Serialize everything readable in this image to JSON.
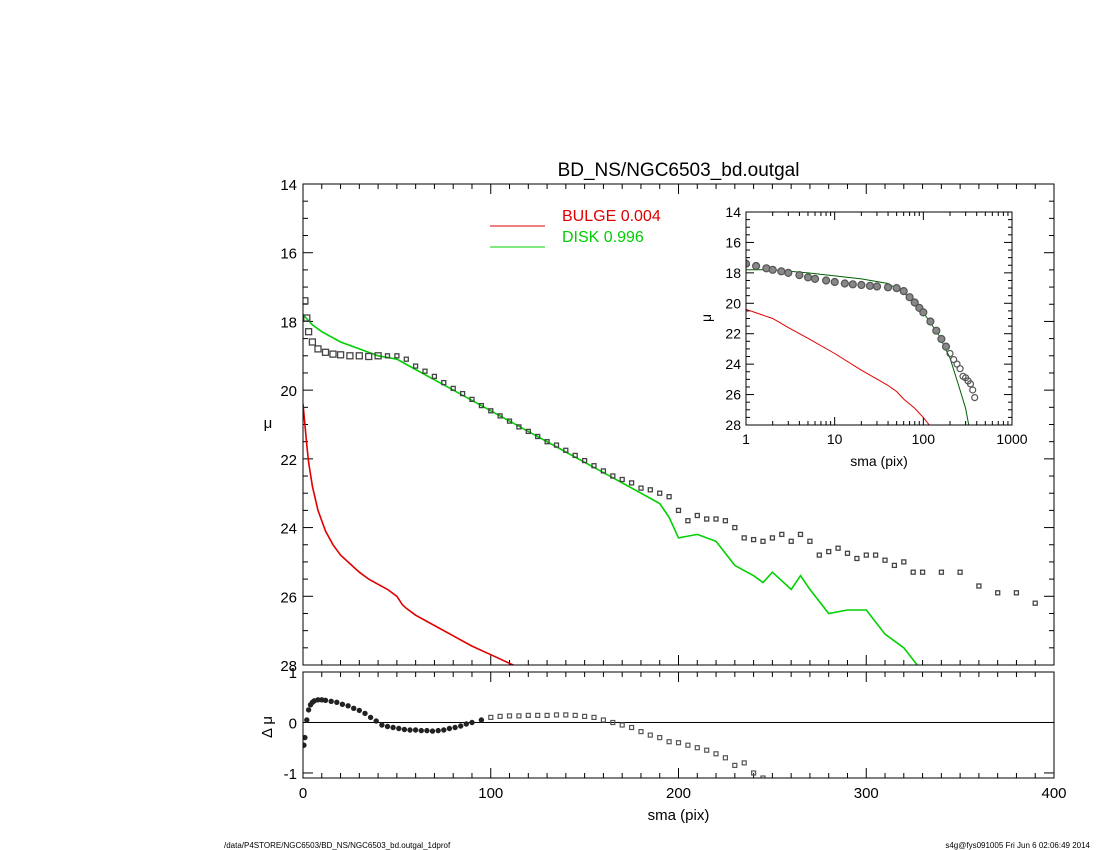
{
  "footer": {
    "left": "/data/P4STORE/NGC6503/BD_NS/NGC6503_bd.outgal_1dprof",
    "right": "s4g@fys091005  Fri Jun  6 02:06:49 2014"
  },
  "colors": {
    "bulge": "#e00000",
    "disk": "#00d000",
    "data": "#444444"
  },
  "chart_data": [
    {
      "type": "scatter",
      "title": "BD_NS/NGC6503_bd.outgal",
      "xlabel": "",
      "ylabel": "μ",
      "xlim": [
        0,
        400
      ],
      "ylim": [
        28,
        14
      ],
      "yticks": [
        14,
        16,
        18,
        20,
        22,
        24,
        26,
        28
      ],
      "legend_placement": "top-center",
      "series": [
        {
          "name": "BULGE  0.004",
          "kind": "line",
          "color": "#e00000",
          "x": [
            0,
            1,
            2,
            3,
            5,
            8,
            12,
            16,
            20,
            25,
            30,
            35,
            40,
            45,
            50,
            53,
            55,
            60,
            70,
            80,
            90,
            100,
            110,
            120
          ],
          "y": [
            20.4,
            21.0,
            21.6,
            22.1,
            22.8,
            23.5,
            24.1,
            24.5,
            24.8,
            25.05,
            25.3,
            25.5,
            25.65,
            25.8,
            26.0,
            26.25,
            26.35,
            26.55,
            26.85,
            27.15,
            27.45,
            27.7,
            27.95,
            28.2
          ]
        },
        {
          "name": "DISK  0.996",
          "kind": "line",
          "color": "#00d000",
          "x": [
            0,
            5,
            10,
            20,
            30,
            40,
            50,
            60,
            80,
            100,
            120,
            140,
            160,
            180,
            190,
            195,
            200,
            210,
            220,
            230,
            240,
            245,
            250,
            260,
            265,
            270,
            280,
            290,
            300,
            310,
            320,
            330
          ],
          "y": [
            17.8,
            18.1,
            18.3,
            18.6,
            18.8,
            19.0,
            19.1,
            19.4,
            20.0,
            20.6,
            21.2,
            21.8,
            22.4,
            23.0,
            23.3,
            23.7,
            24.3,
            24.2,
            24.4,
            25.1,
            25.4,
            25.6,
            25.3,
            25.8,
            25.4,
            25.8,
            26.5,
            26.4,
            26.4,
            27.1,
            27.5,
            28.2
          ]
        },
        {
          "name": "",
          "kind": "points",
          "color": "#444444",
          "x": [
            1,
            2,
            3,
            5,
            8,
            12,
            16,
            20,
            25,
            30,
            35,
            40,
            45,
            50,
            55,
            60,
            65,
            70,
            75,
            80,
            85,
            90,
            95,
            100,
            105,
            110,
            115,
            120,
            125,
            130,
            135,
            140,
            145,
            150,
            155,
            160,
            165,
            170,
            175,
            180,
            185,
            190,
            195,
            200,
            205,
            210,
            215,
            220,
            225,
            230,
            235,
            240,
            245,
            250,
            255,
            260,
            265,
            270,
            275,
            280,
            285,
            290,
            295,
            300,
            305,
            310,
            315,
            320,
            325,
            330,
            340,
            350,
            360,
            370,
            380,
            390
          ],
          "y": [
            17.4,
            17.9,
            18.3,
            18.6,
            18.8,
            18.9,
            18.95,
            18.97,
            19.0,
            19.0,
            19.02,
            19.0,
            19.0,
            19.0,
            19.1,
            19.3,
            19.45,
            19.6,
            19.78,
            19.95,
            20.1,
            20.27,
            20.45,
            20.6,
            20.75,
            20.9,
            21.07,
            21.2,
            21.35,
            21.5,
            21.6,
            21.75,
            21.9,
            22.05,
            22.2,
            22.35,
            22.5,
            22.6,
            22.7,
            22.85,
            22.9,
            23.0,
            23.1,
            23.5,
            23.8,
            23.65,
            23.75,
            23.75,
            23.8,
            24.0,
            24.3,
            24.35,
            24.4,
            24.3,
            24.2,
            24.4,
            24.2,
            24.4,
            24.8,
            24.7,
            24.6,
            24.75,
            24.9,
            24.8,
            24.8,
            24.95,
            25.1,
            25.0,
            25.3,
            25.3,
            25.3,
            25.3,
            25.7,
            25.9,
            25.9,
            26.2
          ]
        }
      ]
    },
    {
      "type": "scatter",
      "title": "",
      "xlabel": "sma (pix)",
      "ylabel": "Δ μ",
      "xlim": [
        0,
        400
      ],
      "ylim": [
        -1.1,
        1.0
      ],
      "xticks": [
        0,
        100,
        200,
        300,
        400
      ],
      "yticks": [
        1,
        0,
        -1
      ],
      "series": [
        {
          "name": "",
          "kind": "points",
          "color": "#222222",
          "x": [
            0.5,
            1,
            2,
            3,
            4,
            5,
            6,
            8,
            10,
            12,
            15,
            18,
            21,
            24,
            27,
            30,
            33,
            36,
            39,
            42,
            45,
            48,
            51,
            54,
            57,
            60,
            63,
            66,
            69,
            72,
            75,
            78,
            81,
            84,
            87,
            90,
            95,
            100,
            105,
            110,
            115,
            120,
            125,
            130,
            135,
            140,
            145,
            150,
            155,
            160,
            165,
            170,
            175,
            180,
            185,
            190,
            195,
            200,
            205,
            210,
            215,
            220,
            225,
            230,
            235,
            240,
            245
          ],
          "y": [
            -0.45,
            -0.3,
            0.05,
            0.25,
            0.35,
            0.4,
            0.43,
            0.45,
            0.45,
            0.44,
            0.42,
            0.4,
            0.36,
            0.33,
            0.28,
            0.24,
            0.18,
            0.1,
            0.03,
            -0.05,
            -0.08,
            -0.1,
            -0.12,
            -0.14,
            -0.15,
            -0.15,
            -0.16,
            -0.16,
            -0.17,
            -0.16,
            -0.15,
            -0.12,
            -0.1,
            -0.07,
            -0.03,
            0.0,
            0.05,
            0.1,
            0.12,
            0.13,
            0.13,
            0.14,
            0.14,
            0.14,
            0.15,
            0.15,
            0.14,
            0.12,
            0.1,
            0.05,
            0.0,
            -0.05,
            -0.1,
            -0.18,
            -0.25,
            -0.3,
            -0.38,
            -0.4,
            -0.45,
            -0.5,
            -0.55,
            -0.62,
            -0.7,
            -0.85,
            -0.8,
            -1.0,
            -1.1
          ]
        }
      ]
    },
    {
      "type": "scatter",
      "title": "",
      "xlabel": "sma (pix)",
      "ylabel": "μ",
      "xscale": "log",
      "xlim": [
        1,
        1000
      ],
      "ylim": [
        28,
        14
      ],
      "xticks": [
        1,
        10,
        100,
        1000
      ],
      "yticks": [
        14,
        16,
        18,
        20,
        22,
        24,
        26,
        28
      ],
      "series": [
        {
          "name": "",
          "kind": "line",
          "color": "#e00000",
          "x": [
            1,
            2,
            3,
            5,
            10,
            20,
            40,
            50,
            60,
            80,
            100,
            120
          ],
          "y": [
            20.4,
            21.0,
            21.6,
            22.3,
            23.3,
            24.4,
            25.4,
            25.8,
            26.3,
            26.9,
            27.5,
            28.1
          ]
        },
        {
          "name": "",
          "kind": "line",
          "color": "#006000",
          "x": [
            1,
            2,
            5,
            10,
            20,
            40,
            60,
            80,
            100,
            150,
            200,
            250,
            300,
            330
          ],
          "y": [
            17.8,
            17.8,
            18.0,
            18.2,
            18.4,
            18.7,
            19.3,
            20.0,
            20.6,
            22.1,
            23.6,
            25.4,
            26.9,
            28.2
          ]
        },
        {
          "name": "",
          "kind": "points",
          "color": "#555555",
          "x": [
            1,
            1.3,
            1.7,
            2,
            2.5,
            3,
            4,
            5,
            6,
            8,
            10,
            13,
            16,
            20,
            25,
            30,
            40,
            50,
            60,
            70,
            80,
            90,
            100,
            120,
            140,
            160,
            180,
            200,
            220,
            240,
            260,
            280,
            300,
            320,
            340,
            360,
            380
          ],
          "y": [
            17.4,
            17.55,
            17.7,
            17.8,
            17.9,
            18.0,
            18.15,
            18.3,
            18.4,
            18.5,
            18.6,
            18.7,
            18.75,
            18.8,
            18.85,
            18.9,
            18.95,
            19.0,
            19.2,
            19.6,
            19.95,
            20.3,
            20.6,
            21.2,
            21.8,
            22.35,
            22.85,
            23.3,
            23.7,
            24.0,
            24.3,
            24.8,
            24.9,
            25.1,
            25.3,
            25.7,
            26.2
          ]
        }
      ]
    }
  ]
}
